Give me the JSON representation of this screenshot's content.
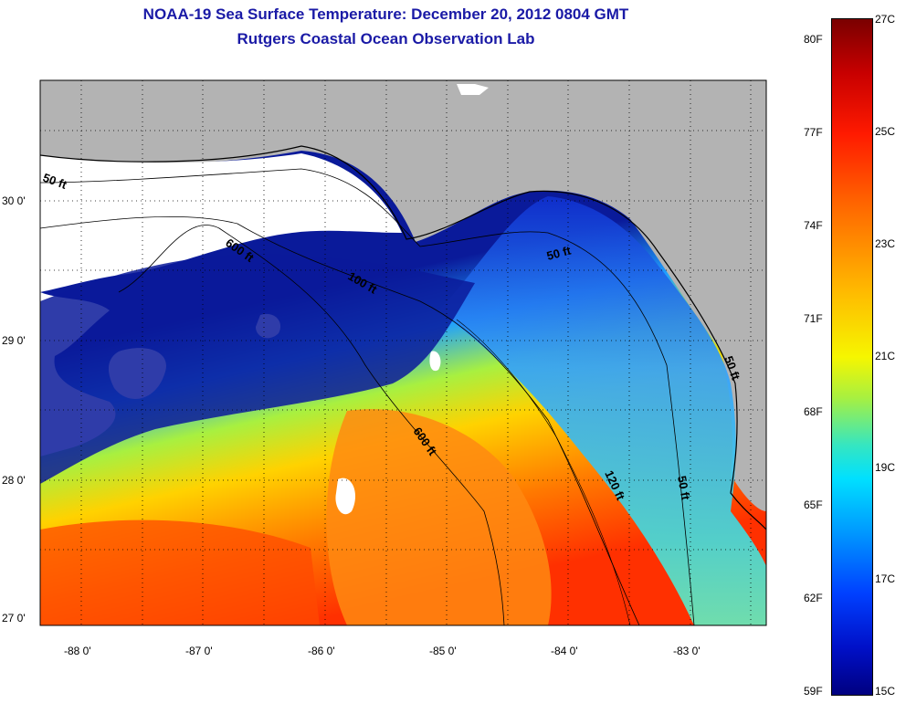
{
  "title": {
    "line1": "NOAA-19 Sea Surface Temperature:  December 20, 2012 0804 GMT",
    "line2": "Rutgers Coastal Ocean Observation Lab"
  },
  "map": {
    "lat_labels": [
      "30 0'",
      "29 0'",
      "28 0'",
      "27 0'"
    ],
    "lon_labels": [
      "-88 0'",
      "-87 0'",
      "-86 0'",
      "-85 0'",
      "-84 0'",
      "-83 0'"
    ],
    "contour_labels": [
      {
        "text": "50 ft",
        "rotation": 20
      },
      {
        "text": "600 ft",
        "rotation": 35
      },
      {
        "text": "100 ft",
        "rotation": 30
      },
      {
        "text": "50 ft",
        "rotation": -15
      },
      {
        "text": "50 ft",
        "rotation": 70
      },
      {
        "text": "600 ft",
        "rotation": 55
      },
      {
        "text": "120 ft",
        "rotation": 65
      },
      {
        "text": "50 ft",
        "rotation": 80
      }
    ],
    "colors": {
      "land": "#b3b3b3",
      "cloud": "#ffffff",
      "cold": "#0a1a9a",
      "warm": "#ff6000"
    }
  },
  "colorbar": {
    "fahrenheit": [
      "80F",
      "77F",
      "74F",
      "71F",
      "68F",
      "65F",
      "62F",
      "59F"
    ],
    "celsius": [
      "27C",
      "25C",
      "23C",
      "21C",
      "19C",
      "17C",
      "15C"
    ],
    "range_f": [
      59,
      81
    ],
    "range_c": [
      15,
      27
    ]
  }
}
